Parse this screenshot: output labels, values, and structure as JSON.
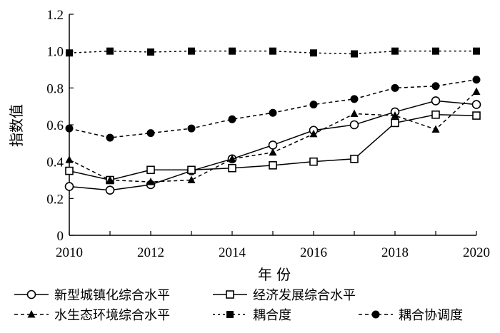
{
  "chart_data": {
    "type": "line",
    "title": "",
    "xlabel": "年 份",
    "ylabel": "指数值",
    "xlim": [
      2010,
      2020
    ],
    "ylim": [
      0,
      1.2
    ],
    "x_ticks": [
      "2010",
      "2012",
      "2014",
      "2016",
      "2018",
      "2020"
    ],
    "y_ticks": [
      "0",
      "0.2",
      "0.4",
      "0.6",
      "0.8",
      "1.0",
      "1.2"
    ],
    "grid": false,
    "legend_position": "bottom",
    "x": [
      2010,
      2011,
      2012,
      2013,
      2014,
      2015,
      2016,
      2017,
      2018,
      2019,
      2020
    ],
    "series": [
      {
        "name": "新型城镇化综合水平",
        "marker": "open-circle",
        "line": "solid",
        "values": [
          0.265,
          0.245,
          0.275,
          0.35,
          0.415,
          0.49,
          0.57,
          0.6,
          0.67,
          0.73,
          0.71
        ]
      },
      {
        "name": "经济发展综合水平",
        "marker": "open-square",
        "line": "solid",
        "values": [
          0.35,
          0.3,
          0.355,
          0.355,
          0.365,
          0.38,
          0.4,
          0.415,
          0.61,
          0.655,
          0.65
        ]
      },
      {
        "name": "水生态环境综合水平",
        "marker": "filled-triangle",
        "line": "dashed",
        "values": [
          0.41,
          0.3,
          0.29,
          0.3,
          0.415,
          0.45,
          0.55,
          0.66,
          0.65,
          0.575,
          0.78
        ]
      },
      {
        "name": "耦合度",
        "marker": "filled-square",
        "line": "dotted",
        "values": [
          0.99,
          1.0,
          0.995,
          1.0,
          1.0,
          1.0,
          0.99,
          0.985,
          1.0,
          1.0,
          1.0
        ]
      },
      {
        "name": "耦合协调度",
        "marker": "filled-circle",
        "line": "dashed",
        "values": [
          0.58,
          0.53,
          0.555,
          0.58,
          0.63,
          0.665,
          0.71,
          0.74,
          0.8,
          0.81,
          0.845
        ]
      }
    ]
  }
}
